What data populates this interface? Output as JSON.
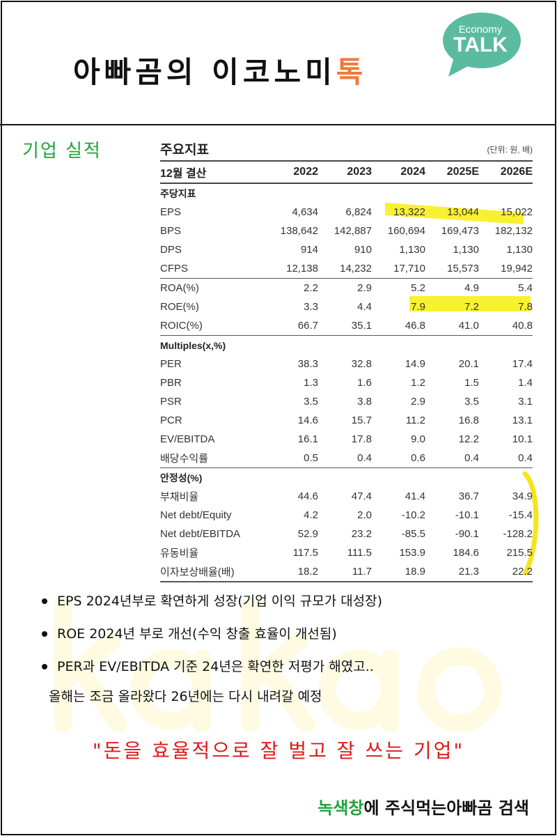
{
  "header": {
    "title_main": "아빠곰의 이코노미",
    "title_accent": "톡",
    "logo": {
      "line1": "Economy",
      "line2": "TALK",
      "color": "#5bbba0"
    }
  },
  "section_label": "기업 실적",
  "watermark": "kakao",
  "table": {
    "title": "주요지표",
    "unit": "(단위: 원, 배)",
    "header": [
      "12월 결산",
      "2022",
      "2023",
      "2024",
      "2025E",
      "2026E"
    ],
    "sections": [
      {
        "name": "주당지표",
        "rows": [
          {
            "label": "EPS",
            "values": [
              "4,634",
              "6,824",
              "13,322",
              "13,044",
              "15,022"
            ]
          },
          {
            "label": "BPS",
            "values": [
              "138,642",
              "142,887",
              "160,694",
              "169,473",
              "182,132"
            ]
          },
          {
            "label": "DPS",
            "values": [
              "914",
              "910",
              "1,130",
              "1,130",
              "1,130"
            ]
          },
          {
            "label": "CFPS",
            "values": [
              "12,138",
              "14,232",
              "17,710",
              "15,573",
              "19,942"
            ]
          }
        ]
      },
      {
        "name": "",
        "rows": [
          {
            "label": "ROA(%)",
            "values": [
              "2.2",
              "2.9",
              "5.2",
              "4.9",
              "5.4"
            ]
          },
          {
            "label": "ROE(%)",
            "values": [
              "3.3",
              "4.4",
              "7.9",
              "7.2",
              "7.8"
            ]
          },
          {
            "label": "ROIC(%)",
            "values": [
              "66.7",
              "35.1",
              "46.8",
              "41.0",
              "40.8"
            ]
          }
        ]
      },
      {
        "name": "Multiples(x,%)",
        "rows": [
          {
            "label": "PER",
            "values": [
              "38.3",
              "32.8",
              "14.9",
              "20.1",
              "17.4"
            ]
          },
          {
            "label": "PBR",
            "values": [
              "1.3",
              "1.6",
              "1.2",
              "1.5",
              "1.4"
            ]
          },
          {
            "label": "PSR",
            "values": [
              "3.5",
              "3.8",
              "2.9",
              "3.5",
              "3.1"
            ]
          },
          {
            "label": "PCR",
            "values": [
              "14.6",
              "15.7",
              "11.2",
              "16.8",
              "13.1"
            ]
          },
          {
            "label": "EV/EBITDA",
            "values": [
              "16.1",
              "17.8",
              "9.0",
              "12.2",
              "10.1"
            ]
          },
          {
            "label": "배당수익률",
            "values": [
              "0.5",
              "0.4",
              "0.6",
              "0.4",
              "0.4"
            ]
          }
        ]
      },
      {
        "name": "안정성(%)",
        "rows": [
          {
            "label": "부채비율",
            "values": [
              "44.6",
              "47.4",
              "41.4",
              "36.7",
              "34.9"
            ]
          },
          {
            "label": "Net debt/Equity",
            "values": [
              "4.2",
              "2.0",
              "-10.2",
              "-10.1",
              "-15.4"
            ]
          },
          {
            "label": "Net debt/EBITDA",
            "values": [
              "52.9",
              "23.2",
              "-85.5",
              "-90.1",
              "-128.2"
            ]
          },
          {
            "label": "유동비율",
            "values": [
              "117.5",
              "111.5",
              "153.9",
              "184.6",
              "215.5"
            ]
          },
          {
            "label": "이자보상배율(배)",
            "values": [
              "18.2",
              "11.7",
              "18.9",
              "21.3",
              "22.2"
            ]
          }
        ]
      }
    ],
    "highlight_color": "#f7ef1b"
  },
  "bullets": [
    "EPS 2024년부로 확연하게 성장(기업 이익 규모가 대성장)",
    "ROE 2024년 부로 개선(수익 창출 효율이 개선됨)",
    "PER과 EV/EBITDA 기준 24년은 확연한 저평가 해였고..",
    "올해는 조금 올라왔다 26년에는 다시 내려갈 예정"
  ],
  "quote": "\"돈을 효율적으로 잘 벌고 잘 쓰는 기업\"",
  "footer": {
    "green": "녹색창",
    "rest": "에 주식먹는아빠곰 검색"
  }
}
